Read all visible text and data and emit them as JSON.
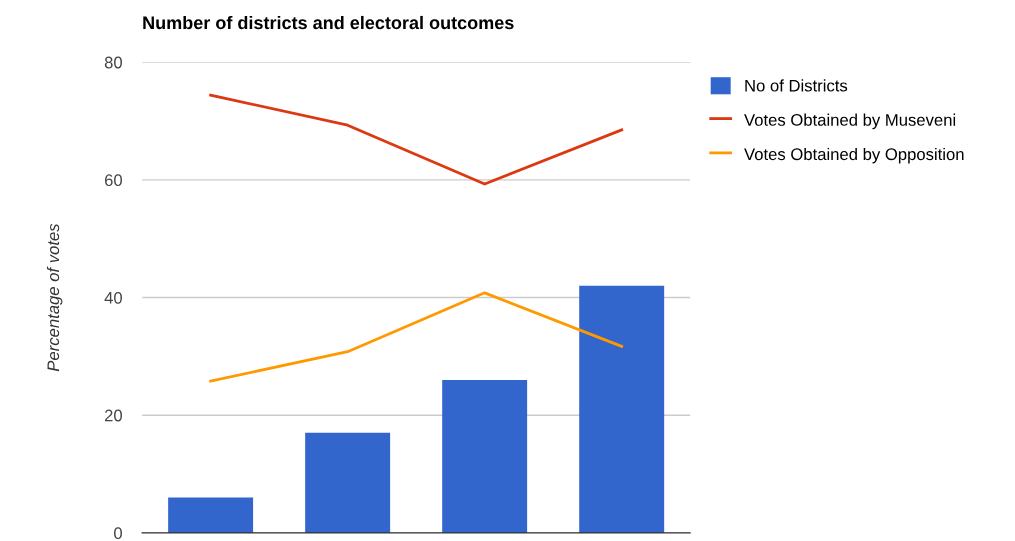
{
  "chart_data": {
    "type": "bar",
    "title": "Number of districts and electoral outcomes",
    "ylabel": "Percentage of votes",
    "categories": [
      null,
      null,
      null,
      null
    ],
    "series": [
      {
        "name": "No of Districts",
        "color": "#3366cc",
        "values": [
          6,
          17,
          26,
          42
        ]
      },
      {
        "name": "Votes Obtained by Museveni",
        "type": "line",
        "color": "#dc3912",
        "values": [
          74.4,
          69.3,
          59.3,
          68.5
        ]
      },
      {
        "name": "Votes Obtained by Opposition",
        "type": "line",
        "color": "#ff9900",
        "values": [
          25.8,
          30.8,
          40.8,
          31.7
        ]
      }
    ],
    "ylim": [
      0,
      80
    ],
    "yticks": [
      0,
      20,
      40,
      60,
      80
    ],
    "grid": "y",
    "legend": "right"
  }
}
